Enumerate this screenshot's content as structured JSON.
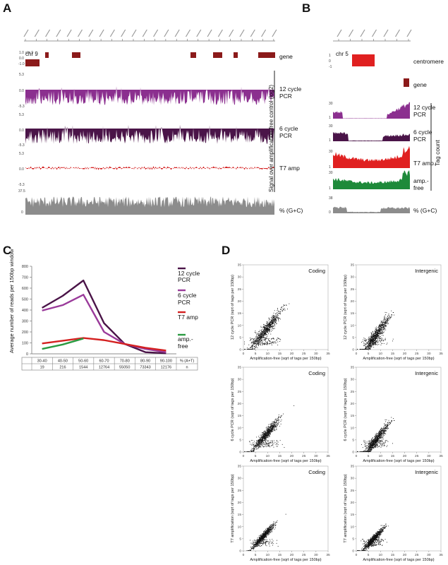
{
  "panels": {
    "A": "A",
    "B": "B",
    "C": "C",
    "D": "D"
  },
  "panelA": {
    "chrom": "chr 9",
    "tracks": [
      "gene",
      "12 cycle\nPCR",
      "6 cycle\nPCR",
      "T7 amp",
      "% (G+C)"
    ],
    "track_labels": {
      "gene": "gene",
      "pcr12_a": "12 cycle",
      "pcr12_b": "PCR",
      "pcr6_a": "6 cycle",
      "pcr6_b": "PCR",
      "t7": "T7 amp",
      "gc": "% (G+C)"
    },
    "side_label": "Signal over amplification-free control (log2)",
    "scale_labels": [
      "1.0",
      "0.0",
      "-1.0",
      "5.3",
      "0.0",
      "-5.3",
      "5.3",
      "0.0",
      "-5.3",
      "5.3",
      "0.0",
      "-5.3",
      "37.5",
      "0"
    ],
    "colors": {
      "gene": "#8b1a1a",
      "pcr12": "#8b2f8f",
      "pcr6": "#4a1448",
      "t7": "#d42020",
      "gc": "#8c8c8c"
    }
  },
  "panelB": {
    "chrom": "chr 5",
    "track_labels": {
      "centromere": "centromere",
      "gene": "gene",
      "pcr12_a": "12 cycle",
      "pcr12_b": "PCR",
      "pcr6_a": "6 cycle",
      "pcr6_b": "PCR",
      "t7": "T7 amp.",
      "ampfree_a": "amp.-",
      "ampfree_b": "free",
      "gc": "% (G+C)"
    },
    "side_label": "Tag count",
    "colors": {
      "centromere": "#e02020",
      "gene": "#8b1a1a",
      "pcr12": "#8b2f8f",
      "pcr6": "#4a1448",
      "t7": "#e02020",
      "ampfree": "#1e8a3a",
      "gc": "#8c8c8c"
    }
  },
  "chart_data": [
    {
      "type": "line",
      "panel": "C",
      "ylabel": "Average number of reads per 150bp window",
      "ylim": [
        0,
        800
      ],
      "yticks": [
        0,
        100,
        200,
        300,
        400,
        500,
        600,
        700,
        800
      ],
      "categories": [
        "30-40",
        "40-50",
        "50-60",
        "60-70",
        "70-80",
        "80-90",
        "90-100"
      ],
      "category_header": "% (A+T)",
      "window_counts": [
        "19",
        "216",
        "1544",
        "12764",
        "55050",
        "73343",
        "12176"
      ],
      "window_counts_header": "n",
      "series": [
        {
          "name": "12 cycle PCR",
          "color": "#4a1448",
          "values": [
            420,
            530,
            670,
            280,
            90,
            15,
            5
          ]
        },
        {
          "name": "6 cycle PCR",
          "color": "#9a3a9a",
          "values": [
            395,
            445,
            540,
            200,
            90,
            45,
            15
          ]
        },
        {
          "name": "T7 amp",
          "color": "#d42020",
          "values": [
            95,
            120,
            145,
            125,
            90,
            55,
            30
          ]
        },
        {
          "name": "amp.- free",
          "color": "#2a9a40",
          "values": [
            45,
            85,
            140,
            null,
            null,
            null,
            null
          ]
        }
      ],
      "legend_labels": {
        "pcr12_a": "12 cycle",
        "pcr12_b": "PCR",
        "pcr6_a": "6 cycle",
        "pcr6_b": "PCR",
        "t7": "T7 amp",
        "ampfree_a": "amp.-",
        "ampfree_b": "free"
      }
    },
    {
      "type": "scatter",
      "panel": "D",
      "xlabel": "Amplification-free (sqrt of tags per 150bp)",
      "xlim": [
        0,
        35
      ],
      "ylim": [
        0,
        35
      ],
      "ticks": [
        0,
        5,
        10,
        15,
        20,
        25,
        30,
        35
      ],
      "plots": [
        {
          "title": "Coding",
          "ylabel": "12 cycle PCR (sqrt of tags per 150bp)",
          "slope": 0.85,
          "spread": 2.4,
          "cx": 9,
          "cy": 8,
          "lenx": 6
        },
        {
          "title": "Intergenic",
          "ylabel": "12 cycle PCR (sqrt of tags per 150bp)",
          "slope": 0.95,
          "spread": 2.2,
          "cx": 8,
          "cy": 6,
          "lenx": 5
        },
        {
          "title": "Coding",
          "ylabel": "6 cycle PCR (sqrt of tags per 150bp)",
          "slope": 0.8,
          "spread": 1.8,
          "cx": 9,
          "cy": 7,
          "lenx": 5
        },
        {
          "title": "Intergenic",
          "ylabel": "6 cycle PCR (sqrt of tags per 150bp)",
          "slope": 0.9,
          "spread": 1.8,
          "cx": 8,
          "cy": 5,
          "lenx": 5
        },
        {
          "title": "Coding",
          "ylabel": "T7 amplification (sqrt of tags per 150bp)",
          "slope": 0.75,
          "spread": 1.2,
          "cx": 8,
          "cy": 6,
          "lenx": 4
        },
        {
          "title": "Intergenic",
          "ylabel": "T7 amplification (sqrt of tags per 150bp)",
          "slope": 0.75,
          "spread": 1.2,
          "cx": 7,
          "cy": 5,
          "lenx": 4
        }
      ]
    }
  ]
}
